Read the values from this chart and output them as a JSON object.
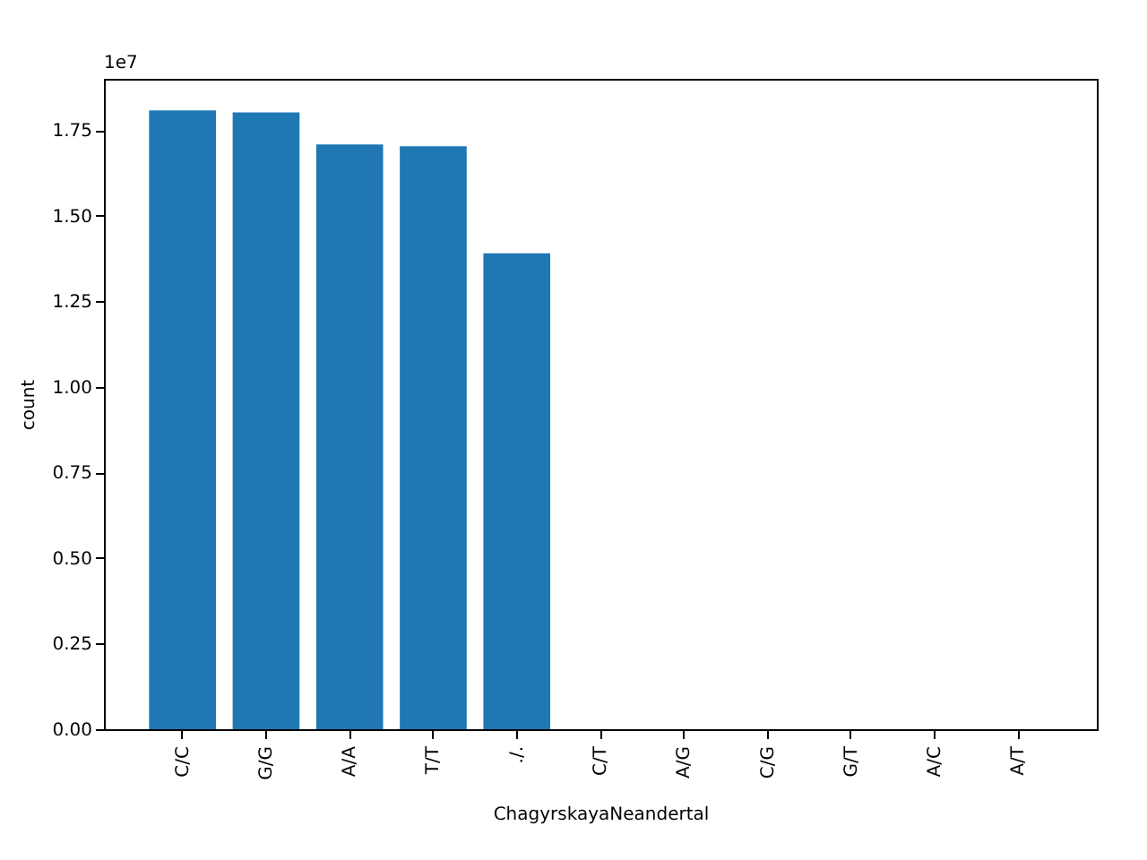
{
  "chart_data": {
    "type": "bar",
    "xlabel": "ChagyrskayaNeandertal",
    "ylabel": "count",
    "annotations": [
      "1e7"
    ],
    "categories": [
      "C/C",
      "G/G",
      "A/A",
      "T/T",
      "./.",
      "C/T",
      "A/G",
      "C/G",
      "G/T",
      "A/C",
      "A/T"
    ],
    "values": [
      1.808,
      1.802,
      1.708,
      1.703,
      1.39,
      0,
      0,
      0,
      0,
      0,
      0
    ],
    "color": "#1f77b4",
    "ylim": [
      0,
      1.9
    ],
    "yticks": [
      {
        "value": 0,
        "label": "0.00"
      },
      {
        "value": 0.25,
        "label": "0.25"
      },
      {
        "value": 0.5,
        "label": "0.50"
      },
      {
        "value": 0.75,
        "label": "0.75"
      },
      {
        "value": 1,
        "label": "1.00"
      },
      {
        "value": 1.25,
        "label": "1.25"
      },
      {
        "value": 1.5,
        "label": "1.50"
      },
      {
        "value": 1.75,
        "label": "1.75"
      }
    ],
    "grid": false
  }
}
